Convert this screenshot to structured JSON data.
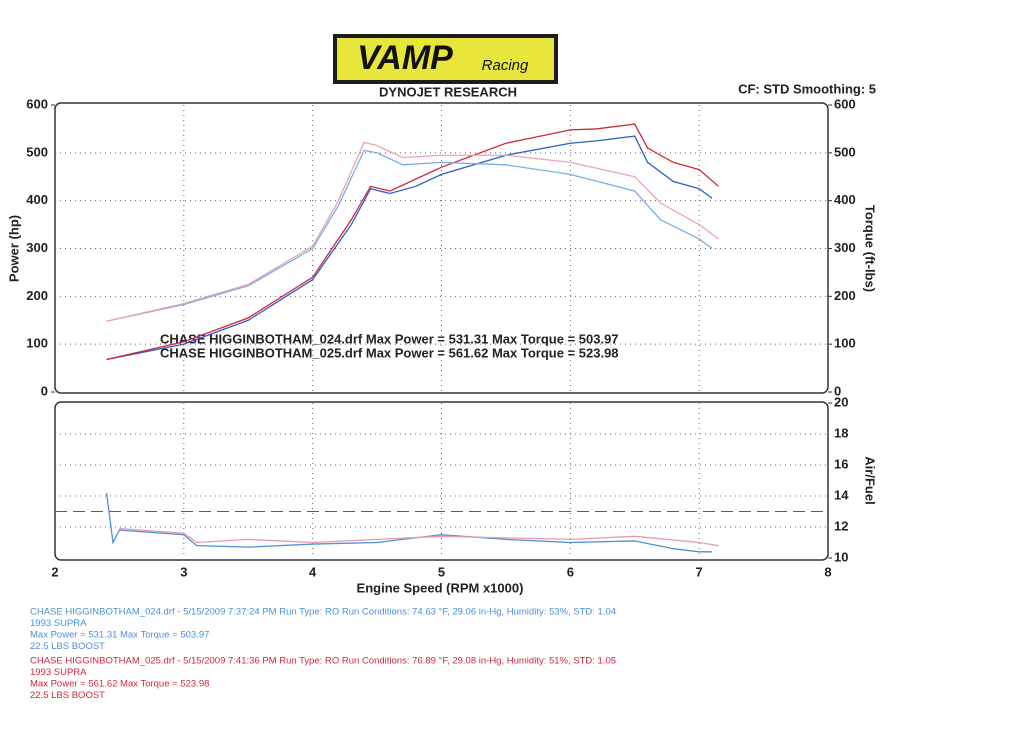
{
  "header": {
    "logo": "VAMP",
    "logo_sub": "Racing",
    "brand": "DYNOJET RESEARCH",
    "settings": "CF: STD  Smoothing: 5"
  },
  "chart_data": [
    {
      "type": "line",
      "ylabel": "Power (hp)",
      "y2label": "Torque (ft-lbs)",
      "xlim": [
        2,
        8
      ],
      "xticks": [
        2,
        3,
        4,
        5,
        6,
        7,
        8
      ],
      "ylim": [
        0,
        600
      ],
      "yticks": [
        0,
        100,
        200,
        300,
        400,
        500,
        600
      ],
      "y2lim": [
        0,
        600
      ],
      "y2ticks": [
        0,
        100,
        200,
        300,
        400,
        500,
        600
      ],
      "grid": true,
      "annotations": [
        "CHASE HIGGINBOTHAM_024.drf Max Power = 531.31     Max Torque = 503.97",
        "CHASE HIGGINBOTHAM_025.drf Max Power = 561.62     Max Torque = 523.98"
      ],
      "series": [
        {
          "color": "#2d5fc4",
          "axis": "y",
          "x": [
            2.4,
            3.0,
            3.5,
            4.0,
            4.3,
            4.45,
            4.6,
            4.8,
            5.0,
            5.5,
            6.0,
            6.2,
            6.5,
            6.6,
            6.8,
            7.0,
            7.1
          ],
          "values": [
            68,
            100,
            150,
            235,
            350,
            425,
            415,
            430,
            455,
            495,
            520,
            525,
            535,
            480,
            440,
            425,
            405
          ]
        },
        {
          "color": "#d0283a",
          "axis": "y",
          "x": [
            2.4,
            3.0,
            3.5,
            4.0,
            4.3,
            4.45,
            4.6,
            4.8,
            5.0,
            5.5,
            6.0,
            6.2,
            6.5,
            6.6,
            6.8,
            7.0,
            7.15
          ],
          "values": [
            68,
            105,
            155,
            240,
            360,
            430,
            420,
            445,
            470,
            520,
            548,
            550,
            560,
            510,
            480,
            465,
            430
          ]
        },
        {
          "color": "#7aaee8",
          "axis": "y2",
          "x": [
            2.4,
            3.0,
            3.5,
            4.0,
            4.2,
            4.4,
            4.5,
            4.7,
            5.0,
            5.5,
            6.0,
            6.5,
            6.7,
            7.0,
            7.1
          ],
          "values": [
            148,
            183,
            222,
            300,
            390,
            505,
            500,
            475,
            480,
            475,
            455,
            420,
            360,
            320,
            300
          ]
        },
        {
          "color": "#efa3b4",
          "axis": "y2",
          "x": [
            2.4,
            3.0,
            3.5,
            4.0,
            4.2,
            4.4,
            4.5,
            4.7,
            5.0,
            5.5,
            6.0,
            6.5,
            6.7,
            7.0,
            7.15
          ],
          "values": [
            148,
            185,
            225,
            305,
            400,
            522,
            515,
            490,
            495,
            495,
            480,
            450,
            395,
            350,
            320
          ]
        }
      ]
    },
    {
      "type": "line",
      "xlabel": "Engine Speed (RPM x1000)",
      "y2label": "Air/Fuel",
      "xlim": [
        2,
        8
      ],
      "xticks": [
        2,
        3,
        4,
        5,
        6,
        7,
        8
      ],
      "y2lim": [
        10,
        20
      ],
      "y2ticks": [
        10,
        12,
        14,
        16,
        18,
        20
      ],
      "grid": true,
      "reference_line": {
        "value": 13,
        "color": "#d0283a"
      },
      "series": [
        {
          "color": "#4a90d9",
          "axis": "y2",
          "x": [
            2.4,
            2.45,
            2.5,
            3.0,
            3.1,
            3.5,
            4.0,
            4.5,
            5.0,
            5.5,
            6.0,
            6.5,
            6.8,
            7.0,
            7.1
          ],
          "values": [
            14.2,
            11.0,
            11.8,
            11.5,
            10.8,
            10.7,
            10.9,
            11.0,
            11.5,
            11.2,
            11.0,
            11.1,
            10.6,
            10.4,
            10.4
          ]
        },
        {
          "color": "#e79aae",
          "axis": "y2",
          "x": [
            2.5,
            3.0,
            3.1,
            3.5,
            4.0,
            4.5,
            5.0,
            5.5,
            6.0,
            6.5,
            7.0,
            7.15
          ],
          "values": [
            11.9,
            11.6,
            11.0,
            11.2,
            11.0,
            11.2,
            11.4,
            11.3,
            11.2,
            11.4,
            11.0,
            10.8
          ]
        }
      ]
    }
  ],
  "footer": {
    "runs": [
      {
        "color": "#4a90d9",
        "lines": [
          "CHASE HIGGINBOTHAM_024.drf - 5/15/2009 7:37:24 PM  Run Type: RO  Run Conditions: 74.63 °F, 29.06 in-Hg,  Humidity:  53%,  STD: 1.04",
          "1993 SUPRA",
          "Max Power = 531.31  Max Torque = 503.97",
          "22.5 LBS BOOST"
        ]
      },
      {
        "color": "#d0283a",
        "lines": [
          "CHASE HIGGINBOTHAM_025.drf - 5/15/2009 7:41:36 PM  Run Type: RO  Run Conditions: 76.89 °F, 29.08 in-Hg,  Humidity:  51%,  STD: 1.05",
          "1993 SUPRA",
          "Max Power = 561.62  Max Torque = 523.98",
          "22.5 LBS BOOST"
        ]
      }
    ]
  }
}
